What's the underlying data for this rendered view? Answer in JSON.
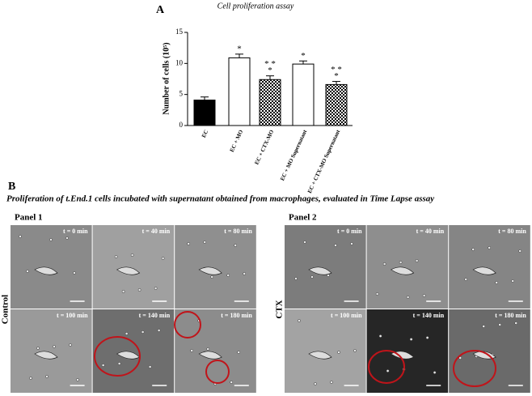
{
  "chart_data": {
    "type": "bar",
    "panel_letter": "A",
    "title": "Cell proliferation assay",
    "ylabel": "Number of cells (10⁵)",
    "categories": [
      "EC",
      "EC + MO",
      "EC + CTX-MO",
      "EC + MO Supernatant",
      "EC + CTX-MO Supernatant"
    ],
    "values": [
      4.1,
      10.9,
      7.4,
      9.9,
      6.6
    ],
    "errors": [
      0.5,
      0.6,
      0.6,
      0.5,
      0.5
    ],
    "fills": [
      "#000000",
      "#ffffff",
      "checker",
      "#ffffff",
      "checker"
    ],
    "significance": [
      null,
      [
        "*"
      ],
      [
        "* *",
        "*"
      ],
      [
        "*"
      ],
      [
        "* *",
        "*"
      ]
    ],
    "ylim": [
      0,
      15
    ],
    "yticks": [
      0,
      5,
      10,
      15
    ],
    "grid": false
  },
  "figure_b": {
    "panel_letter": "B",
    "caption": "Proliferation of t.End.1 cells incubated with supernatant obtained from macrophages, evaluated in Time Lapse assay",
    "panels": [
      {
        "label": "Panel 1",
        "row_label": "Control",
        "times": [
          "t = 0 min",
          "t = 40 min",
          "t = 80 min",
          "t = 100 min",
          "t = 140 min",
          "t = 180 min"
        ]
      },
      {
        "label": "Panel 2",
        "row_label": "CTX",
        "times": [
          "t = 0 min",
          "t = 40 min",
          "t = 80 min",
          "t = 100 min",
          "t = 140 min",
          "t = 180 min"
        ]
      }
    ]
  }
}
